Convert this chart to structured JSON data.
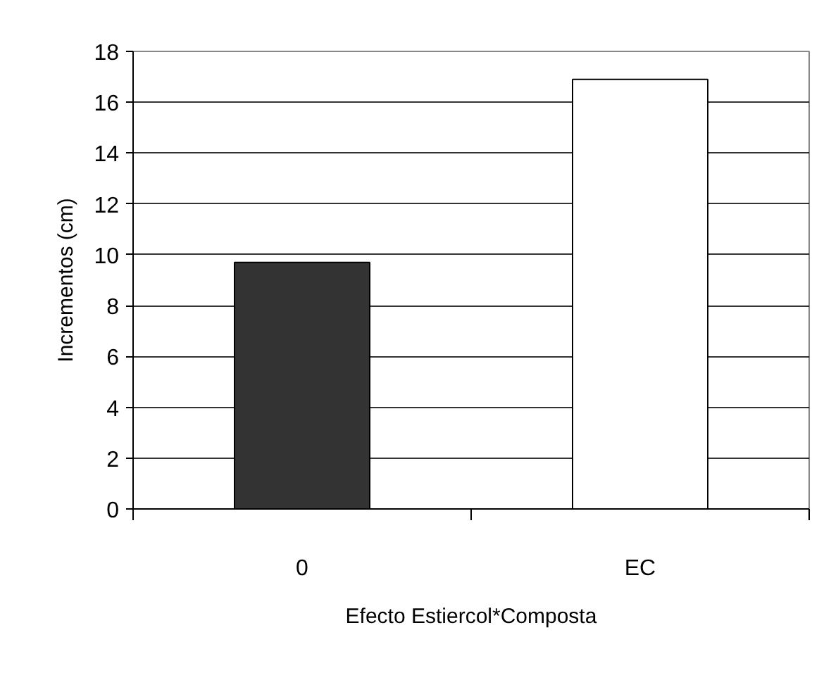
{
  "chart_data": {
    "type": "bar",
    "xlabel": "Efecto Estiercol*Composta",
    "ylabel": "Incrementos (cm)",
    "categories": [
      "0",
      "EC"
    ],
    "values": [
      9.7,
      16.9
    ],
    "colors": [
      "#333333",
      "#ffffff"
    ],
    "ylim": [
      0,
      18
    ],
    "yticks": [
      0,
      2,
      4,
      6,
      8,
      10,
      12,
      14,
      16,
      18
    ],
    "grid": "y"
  }
}
